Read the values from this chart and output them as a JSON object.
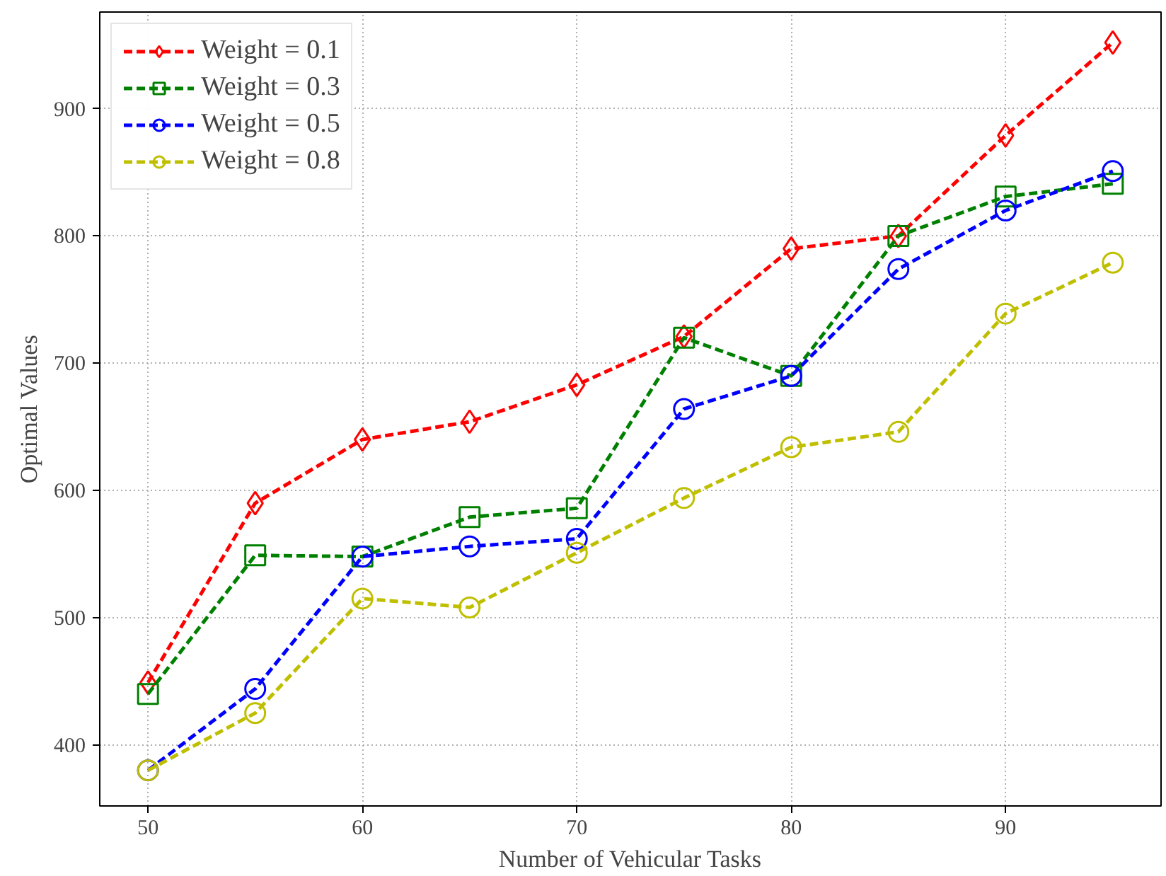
{
  "chart_data": {
    "type": "line",
    "xlabel": "Number of Vehicular Tasks",
    "ylabel": "Optimal Values",
    "x": [
      50,
      55,
      60,
      65,
      70,
      75,
      80,
      85,
      90,
      95
    ],
    "series": [
      {
        "name": "Weight = 0.1",
        "color": "#ff0000",
        "marker": "diamond",
        "values": [
          449,
          590,
          640,
          654,
          683,
          721,
          790,
          800,
          879,
          952
        ]
      },
      {
        "name": "Weight = 0.3",
        "color": "#008000",
        "marker": "square",
        "values": [
          440,
          549,
          548,
          579,
          586,
          720,
          690,
          800,
          831,
          841
        ]
      },
      {
        "name": "Weight = 0.5",
        "color": "#0000ff",
        "marker": "circle",
        "values": [
          380,
          444,
          548,
          556,
          562,
          664,
          690,
          774,
          820,
          851
        ]
      },
      {
        "name": "Weight = 0.8",
        "color": "#bfbf00",
        "marker": "circle",
        "values": [
          380,
          425,
          515,
          508,
          551,
          594,
          634,
          646,
          739,
          779
        ]
      }
    ],
    "xlim": [
      47.75,
      97.25
    ],
    "ylim": [
      352,
      976
    ],
    "xticks": [
      50,
      60,
      70,
      80,
      90
    ],
    "yticks": [
      400,
      500,
      600,
      700,
      800,
      900
    ],
    "grid": true,
    "legend": "top left",
    "line_style": "dashed"
  }
}
